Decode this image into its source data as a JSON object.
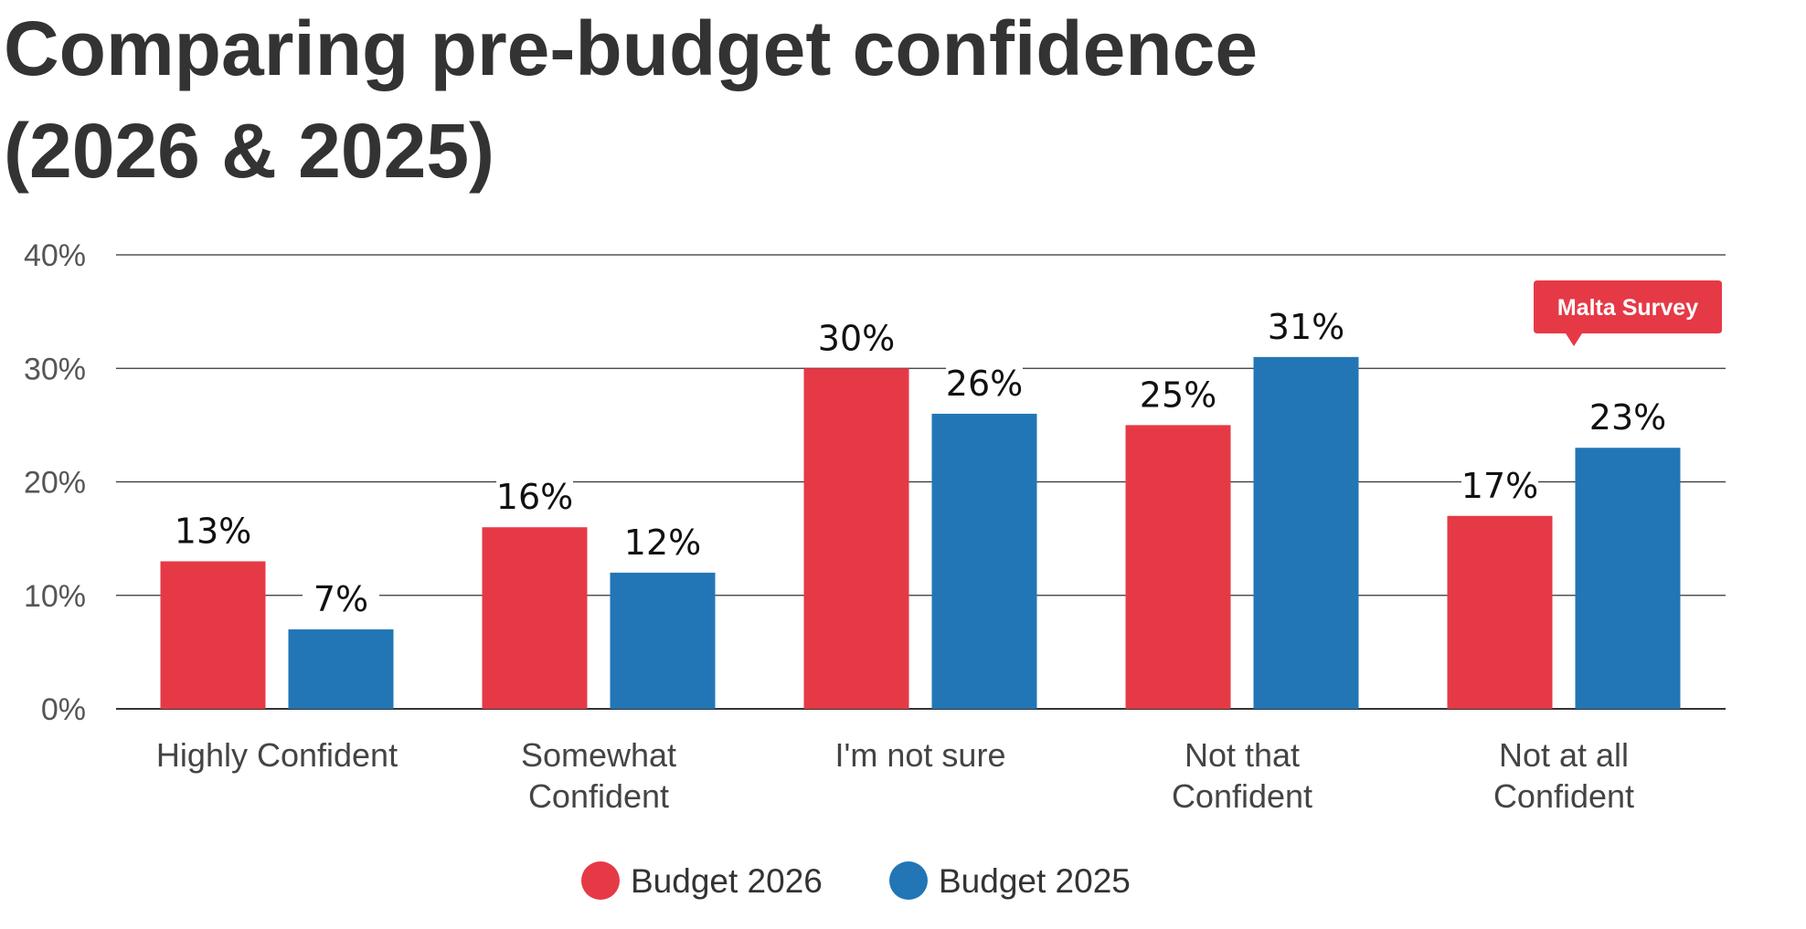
{
  "title_lines": [
    "Comparing pre-budget confidence",
    "(2026 & 2025)"
  ],
  "badge": {
    "label": "Malta Survey"
  },
  "colors": {
    "budget_2026": "#E63946",
    "budget_2025": "#2276B5",
    "title": "#333333",
    "grid": "#333333",
    "badge_bg": "#E63946"
  },
  "chart_data": {
    "type": "bar",
    "title": "Comparing pre-budget confidence (2026 & 2025)",
    "categories": [
      [
        "Highly Confident"
      ],
      [
        "Somewhat",
        "Confident"
      ],
      [
        "I'm not sure"
      ],
      [
        "Not that",
        "Confident"
      ],
      [
        "Not at all",
        "Confident"
      ]
    ],
    "series": [
      {
        "name": "Budget 2026",
        "values": [
          13,
          16,
          30,
          25,
          17
        ],
        "labels": [
          "13%",
          "16%",
          "30%",
          "25%",
          "17%"
        ]
      },
      {
        "name": "Budget 2025",
        "values": [
          7,
          12,
          26,
          31,
          23
        ],
        "labels": [
          "7%",
          "12%",
          "26%",
          "31%",
          "23%"
        ]
      }
    ],
    "yticks": [
      "0%",
      "10%",
      "20%",
      "30%",
      "40%"
    ],
    "ylim": [
      0,
      40
    ],
    "grid": true,
    "legend_position": "bottom-center",
    "xlabel": "",
    "ylabel": ""
  }
}
